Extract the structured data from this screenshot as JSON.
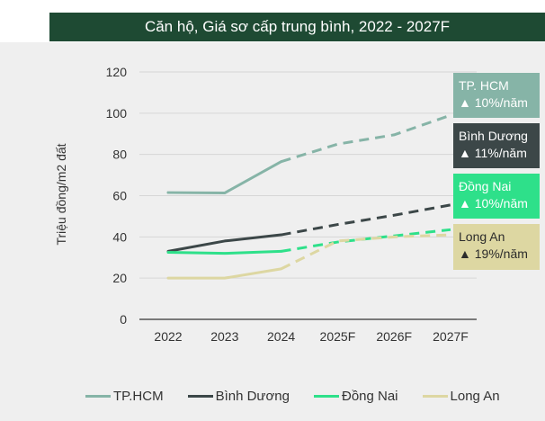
{
  "chart_data": {
    "type": "line",
    "title": "Căn hộ, Giá sơ cấp trung bình, 2022 - 2027F",
    "ylabel": "Triệu đồng/m2 đất",
    "xlabel": "",
    "categories": [
      "2022",
      "2023",
      "2024",
      "2025F",
      "2026F",
      "2027F"
    ],
    "ylim": [
      0,
      120
    ],
    "yticks": [
      0,
      20,
      40,
      60,
      80,
      100,
      120
    ],
    "forecast_from_index": 2,
    "grid": "horizontal",
    "legend_position": "bottom",
    "series": [
      {
        "name": "TP.HCM",
        "color": "#86b4a7",
        "values": [
          61.5,
          61.3,
          76.5,
          85,
          89.5,
          99
        ]
      },
      {
        "name": "Bình Dương",
        "color": "#3c4748",
        "values": [
          33,
          38,
          41,
          46,
          50.5,
          55.5
        ]
      },
      {
        "name": "Đồng Nai",
        "color": "#2ee08a",
        "values": [
          32.5,
          32,
          33,
          37.5,
          40.5,
          43.5
        ]
      },
      {
        "name": "Long An",
        "color": "#ddd7a2",
        "values": [
          20,
          20,
          24.5,
          38,
          40,
          41
        ]
      }
    ],
    "annotations": [
      {
        "id": "hcm",
        "name": "TP. HCM",
        "growth": "▲ 10%/năm",
        "color": "#86b4a7"
      },
      {
        "id": "bd",
        "name": "Bình Dương",
        "growth": "▲ 11%/năm",
        "color": "#3c4748"
      },
      {
        "id": "dn",
        "name": "Đồng Nai",
        "growth": "▲ 10%/năm",
        "color": "#2ee08a"
      },
      {
        "id": "la",
        "name": "Long An",
        "growth": "▲ 19%/năm",
        "color": "#ddd7a2"
      }
    ]
  }
}
